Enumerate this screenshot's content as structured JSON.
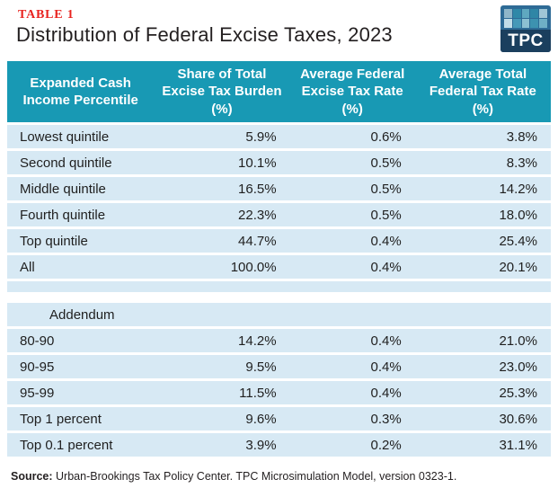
{
  "header": {
    "table_label": "TABLE 1",
    "title": "Distribution of Federal Excise Taxes, 2023"
  },
  "logo": {
    "text": "TPC",
    "background": "#2e6b96",
    "band_color": "#1b3f5e",
    "squares": [
      "#8fb6c9",
      "#2f88a8",
      "#5fa8c0",
      "#2f86a6",
      "#9fc6d6",
      "#c2dde8",
      "#4699b8",
      "#8cc0d2",
      "#3d92b0",
      "#6fb0c6"
    ]
  },
  "colors": {
    "header_teal": "#1899b4",
    "row_blue": "#d7e9f4",
    "accent_red": "#e8231f"
  },
  "table": {
    "columns": [
      {
        "label": "Expanded Cash\nIncome Percentile"
      },
      {
        "label": "Share of Total\nExcise Tax Burden\n(%)"
      },
      {
        "label": "Average Federal\nExcise Tax Rate\n(%)"
      },
      {
        "label": "Average Total\nFederal Tax Rate\n(%)"
      }
    ],
    "rows": [
      {
        "label": "Lowest quintile",
        "share": "5.9%",
        "excise_rate": "0.6%",
        "total_rate": "3.8%"
      },
      {
        "label": "Second quintile",
        "share": "10.1%",
        "excise_rate": "0.5%",
        "total_rate": "8.3%"
      },
      {
        "label": "Middle quintile",
        "share": "16.5%",
        "excise_rate": "0.5%",
        "total_rate": "14.2%"
      },
      {
        "label": "Fourth quintile",
        "share": "22.3%",
        "excise_rate": "0.5%",
        "total_rate": "18.0%"
      },
      {
        "label": "Top quintile",
        "share": "44.7%",
        "excise_rate": "0.4%",
        "total_rate": "25.4%"
      },
      {
        "label": "All",
        "share": "100.0%",
        "excise_rate": "0.4%",
        "total_rate": "20.1%"
      },
      {
        "label": "Addendum"
      },
      {
        "label": "80-90",
        "share": "14.2%",
        "excise_rate": "0.4%",
        "total_rate": "21.0%"
      },
      {
        "label": "90-95",
        "share": "9.5%",
        "excise_rate": "0.4%",
        "total_rate": "23.0%"
      },
      {
        "label": "95-99",
        "share": "11.5%",
        "excise_rate": "0.4%",
        "total_rate": "25.3%"
      },
      {
        "label": "Top 1 percent",
        "share": "9.6%",
        "excise_rate": "0.3%",
        "total_rate": "30.6%"
      },
      {
        "label": "Top 0.1 percent",
        "share": "3.9%",
        "excise_rate": "0.2%",
        "total_rate": "31.1%"
      }
    ]
  },
  "footer": {
    "source_label": "Source:",
    "source_text": "Urban-Brookings Tax Policy Center. TPC Microsimulation Model, version 0323-1."
  },
  "chart_data": {
    "type": "table",
    "table_label": "TABLE 1",
    "title": "Distribution of Federal Excise Taxes, 2023",
    "columns": [
      "Expanded Cash Income Percentile",
      "Share of Total Excise Tax Burden (%)",
      "Average Federal Excise Tax Rate (%)",
      "Average Total Federal Tax Rate (%)"
    ],
    "rows": [
      [
        "Lowest quintile",
        5.9,
        0.6,
        3.8
      ],
      [
        "Second quintile",
        10.1,
        0.5,
        8.3
      ],
      [
        "Middle quintile",
        16.5,
        0.5,
        14.2
      ],
      [
        "Fourth quintile",
        22.3,
        0.5,
        18.0
      ],
      [
        "Top quintile",
        44.7,
        0.4,
        25.4
      ],
      [
        "All",
        100.0,
        0.4,
        20.1
      ]
    ],
    "addendum_rows": [
      [
        "80-90",
        14.2,
        0.4,
        21.0
      ],
      [
        "90-95",
        9.5,
        0.4,
        23.0
      ],
      [
        "95-99",
        11.5,
        0.4,
        25.3
      ],
      [
        "Top 1 percent",
        9.6,
        0.3,
        30.6
      ],
      [
        "Top 0.1 percent",
        3.9,
        0.2,
        31.1
      ]
    ],
    "source": "Urban-Brookings Tax Policy Center. TPC Microsimulation Model, version 0323-1."
  }
}
